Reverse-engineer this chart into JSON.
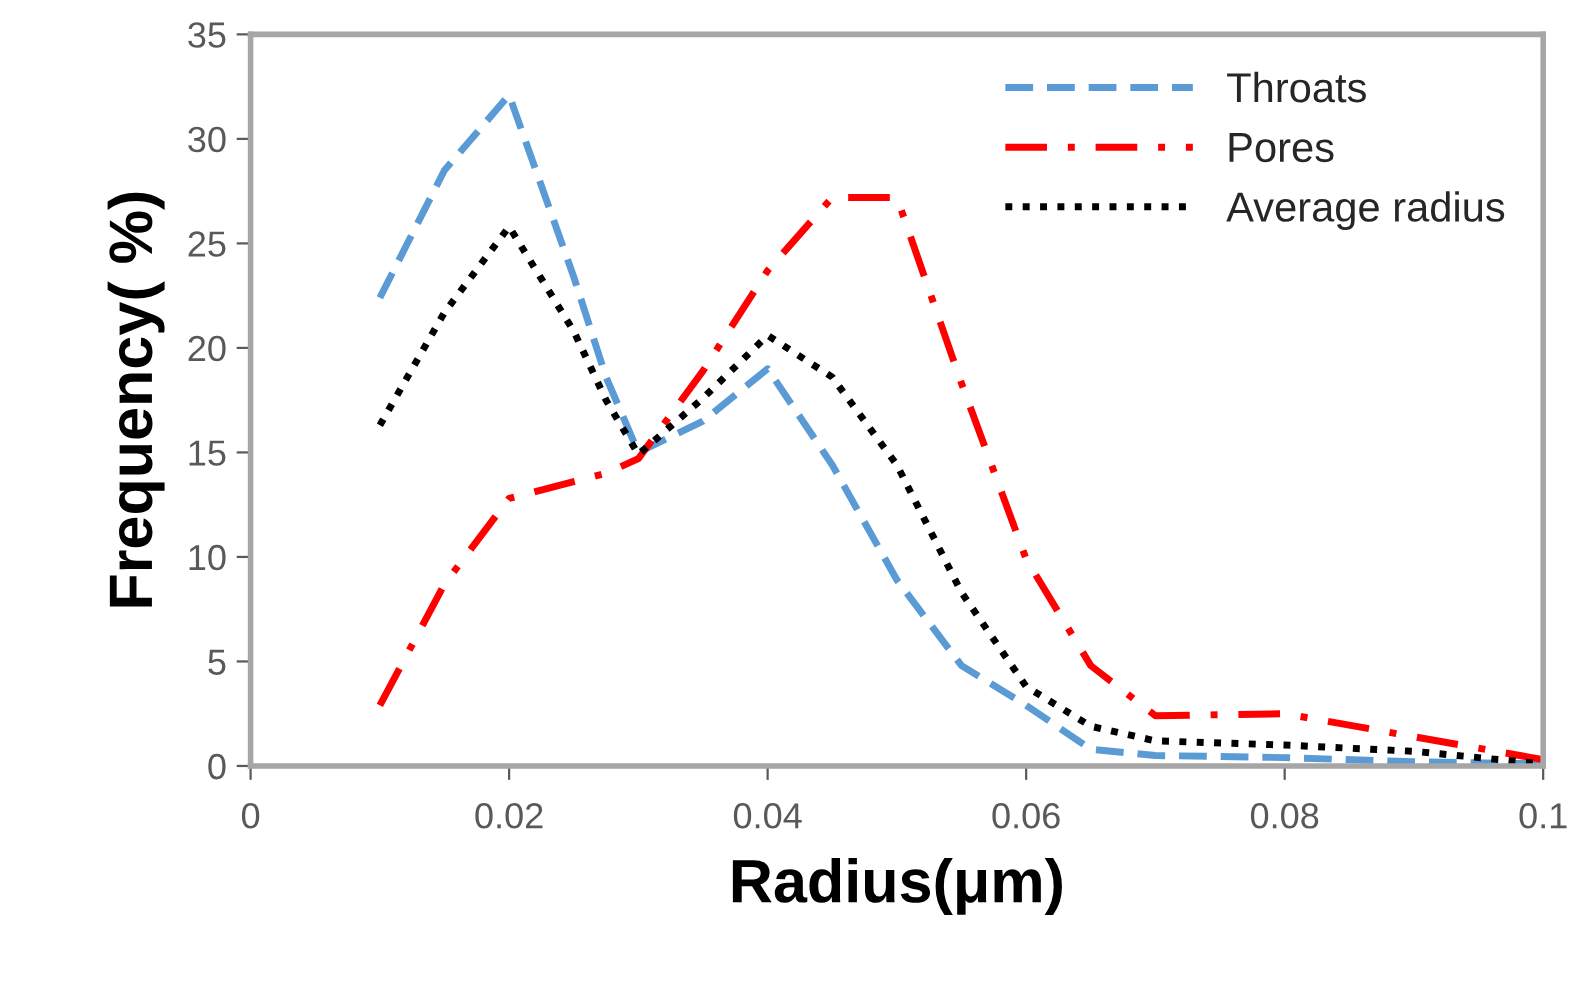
{
  "chart_data": {
    "type": "line",
    "xlabel": "Radius(μm)",
    "ylabel": "Frequency( %)",
    "xlim": [
      0,
      0.1
    ],
    "xticks": [
      0,
      0.02,
      0.04,
      0.06,
      0.08,
      0.1
    ],
    "ylim": [
      0,
      35
    ],
    "yticks": [
      0,
      5,
      10,
      15,
      20,
      25,
      30,
      35
    ],
    "x": [
      0.01,
      0.015,
      0.02,
      0.025,
      0.0275,
      0.03,
      0.035,
      0.04,
      0.045,
      0.05,
      0.055,
      0.06,
      0.065,
      0.07,
      0.08,
      0.09,
      0.1
    ],
    "grid": false,
    "legend": "top right",
    "marker": "none",
    "series": [
      {
        "name": "Throats",
        "color": "#5b9bd5",
        "line_style": "dashed",
        "values": [
          22.4,
          28.5,
          32.1,
          23.4,
          18.6,
          15.0,
          16.5,
          19.0,
          14.4,
          8.9,
          4.8,
          2.9,
          0.8,
          0.5,
          0.4,
          0.2,
          0.1
        ]
      },
      {
        "name": "Pores",
        "color": "#ff0000",
        "line_style": "dashdot",
        "values": [
          2.9,
          8.7,
          12.8,
          13.6,
          14.0,
          14.7,
          18.9,
          23.7,
          27.2,
          27.2,
          18.3,
          9.9,
          4.8,
          2.4,
          2.5,
          1.4,
          0.3
        ]
      },
      {
        "name": "Average radius",
        "color": "#000000",
        "line_style": "dotted",
        "values": [
          16.3,
          21.7,
          25.8,
          20.8,
          17.5,
          14.9,
          17.6,
          20.6,
          18.6,
          14.4,
          8.3,
          3.8,
          1.9,
          1.2,
          1.0,
          0.7,
          0.1
        ]
      }
    ]
  }
}
